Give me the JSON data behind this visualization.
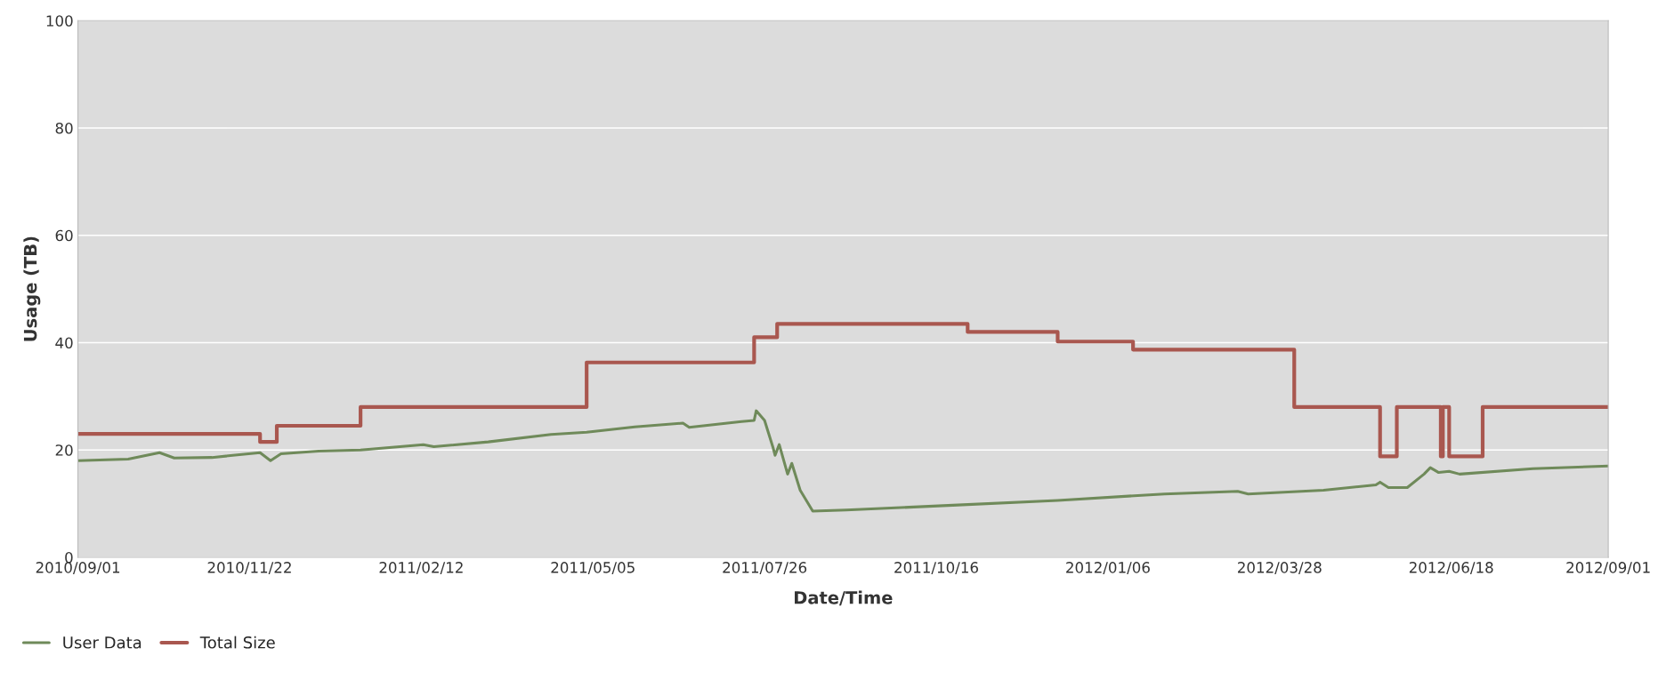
{
  "chart_data": {
    "type": "line",
    "xlabel": "Date/Time",
    "ylabel": "Usage (TB)",
    "xlim": [
      "2010-09-01",
      "2012-09-01"
    ],
    "xticks": [
      {
        "value": "2010-09-01",
        "label": "2010/09/01"
      },
      {
        "value": "2010-11-22",
        "label": "2010/11/22"
      },
      {
        "value": "2011-02-12",
        "label": "2011/02/12"
      },
      {
        "value": "2011-05-05",
        "label": "2011/05/05"
      },
      {
        "value": "2011-07-26",
        "label": "2011/07/26"
      },
      {
        "value": "2011-10-16",
        "label": "2011/10/16"
      },
      {
        "value": "2012-01-06",
        "label": "2012/01/06"
      },
      {
        "value": "2012-03-28",
        "label": "2012/03/28"
      },
      {
        "value": "2012-06-18",
        "label": "2012/06/18"
      },
      {
        "value": "2012-09-01",
        "label": "2012/09/01"
      }
    ],
    "ylim": [
      0,
      100
    ],
    "yticks": [
      0,
      20,
      40,
      60,
      80,
      100
    ],
    "grid": "y",
    "legend": "bottom left",
    "line_style": "solid",
    "series": [
      {
        "name": "User Data",
        "color": "#6f8a5a",
        "x": [
          "2010-09-01",
          "2010-09-25",
          "2010-10-10",
          "2010-10-17",
          "2010-11-04",
          "2010-11-27",
          "2010-12-02",
          "2010-12-07",
          "2010-12-25",
          "2011-01-14",
          "2011-02-13",
          "2011-02-18",
          "2011-03-16",
          "2011-04-15",
          "2011-05-02",
          "2011-05-25",
          "2011-06-17",
          "2011-06-20",
          "2011-07-15",
          "2011-07-21",
          "2011-07-22",
          "2011-07-26",
          "2011-07-30",
          "2011-07-31",
          "2011-08-02",
          "2011-08-06",
          "2011-08-08",
          "2011-08-12",
          "2011-08-18",
          "2011-09-03",
          "2011-10-24",
          "2011-12-13",
          "2012-02-02",
          "2012-03-08",
          "2012-03-13",
          "2012-04-18",
          "2012-05-13",
          "2012-05-15",
          "2012-05-19",
          "2012-05-28",
          "2012-06-05",
          "2012-06-08",
          "2012-06-12",
          "2012-06-17",
          "2012-06-22",
          "2012-07-27",
          "2012-09-01"
        ],
        "values": [
          18,
          18.3,
          19.5,
          18.5,
          18.6,
          19.5,
          18,
          19.3,
          19.8,
          20,
          21,
          20.6,
          21.5,
          22.9,
          23.3,
          24.3,
          25,
          24.2,
          25.3,
          25.5,
          27.3,
          25.5,
          20.5,
          19,
          21,
          15.5,
          17.5,
          12.5,
          8.6,
          8.8,
          9.7,
          10.6,
          11.8,
          12.3,
          11.8,
          12.5,
          13.5,
          14,
          13,
          13,
          15.5,
          16.7,
          15.8,
          16,
          15.5,
          16.5,
          17
        ]
      },
      {
        "name": "Total Size",
        "color": "#a9574f",
        "type": "step",
        "x": [
          "2010-09-01",
          "2010-11-27",
          "2010-12-05",
          "2011-01-14",
          "2011-05-02",
          "2011-07-21",
          "2011-08-01",
          "2011-10-31",
          "2011-12-13",
          "2012-01-18",
          "2012-04-04",
          "2012-05-15",
          "2012-05-23",
          "2012-06-13",
          "2012-06-14",
          "2012-06-17",
          "2012-07-03",
          "2012-09-01"
        ],
        "values": [
          23,
          21.5,
          24.5,
          28,
          36.3,
          41,
          43.5,
          42,
          40.2,
          38.7,
          28,
          18.8,
          28,
          18.8,
          28,
          18.8,
          28,
          28
        ]
      }
    ]
  }
}
